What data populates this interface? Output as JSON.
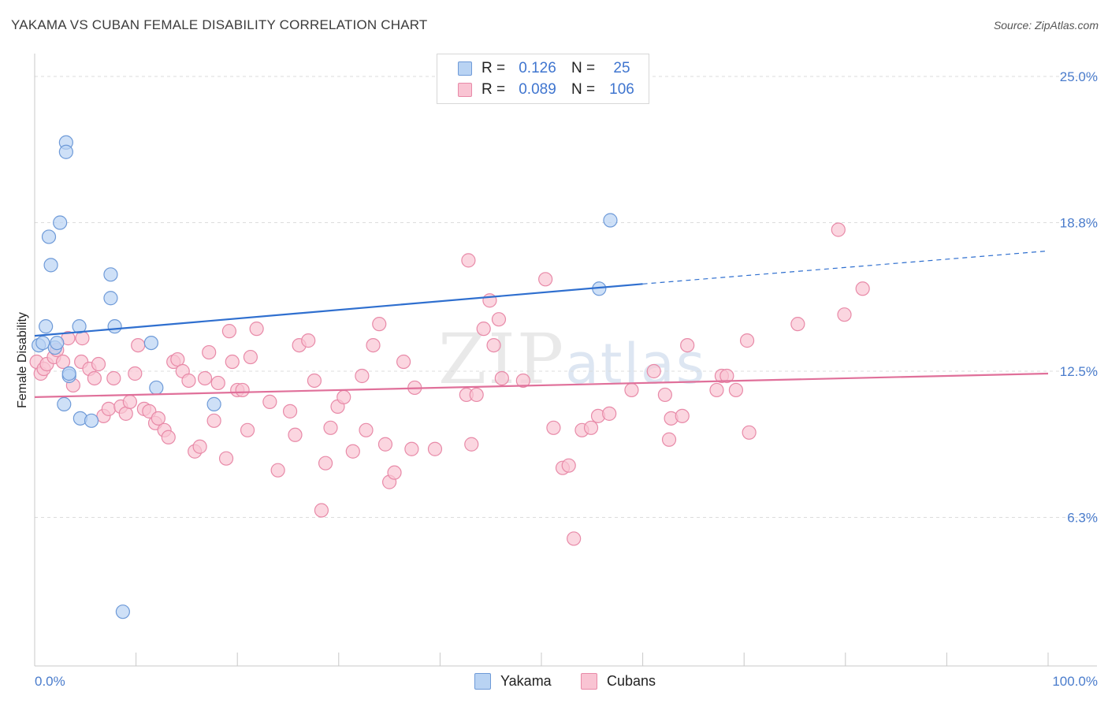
{
  "title": "YAKAMA VS CUBAN FEMALE DISABILITY CORRELATION CHART",
  "source": "Source: ZipAtlas.com",
  "watermark": {
    "zip": "ZIP",
    "atlas": "atlas"
  },
  "legend": {
    "rows": [
      {
        "name": "Yakama",
        "r_label": "R =",
        "r_value": "0.126",
        "n_label": "N =",
        "n_value": "25",
        "color": "#6e9ad8"
      },
      {
        "name": "Cubans",
        "r_label": "R =",
        "r_value": "0.089",
        "n_label": "N =",
        "n_value": "106",
        "color": "#e88aa8"
      }
    ]
  },
  "bottom_legend": {
    "yakama": "Yakama",
    "cubans": "Cubans"
  },
  "chart_data": {
    "type": "scatter",
    "title": "YAKAMA VS CUBAN FEMALE DISABILITY CORRELATION CHART",
    "xlabel": "",
    "ylabel": "Female Disability",
    "xlim": [
      0,
      100
    ],
    "ylim": [
      0,
      25
    ],
    "x_tick_labels": [
      "0.0%",
      "100.0%"
    ],
    "y_ticks": [
      6.3,
      12.5,
      18.8,
      25.0
    ],
    "y_tick_labels": [
      "6.3%",
      "12.5%",
      "18.8%",
      "25.0%"
    ],
    "series": [
      {
        "name": "Yakama",
        "color": "#6e9ad8",
        "fill": "#b9d3f3",
        "trend": {
          "x0": 0,
          "y0": 14.0,
          "x1": 60,
          "y1": 16.2,
          "dash_to_x": 100,
          "dash_to_y": 17.6,
          "color": "#2f6fcf"
        },
        "points": [
          [
            0.4,
            13.6
          ],
          [
            0.8,
            13.7
          ],
          [
            1.1,
            14.4
          ],
          [
            1.4,
            18.2
          ],
          [
            1.6,
            17.0
          ],
          [
            2.0,
            13.5
          ],
          [
            2.2,
            13.7
          ],
          [
            2.5,
            18.8
          ],
          [
            2.9,
            11.1
          ],
          [
            3.1,
            22.2
          ],
          [
            3.1,
            21.8
          ],
          [
            3.4,
            12.3
          ],
          [
            3.4,
            12.4
          ],
          [
            4.4,
            14.4
          ],
          [
            4.5,
            10.5
          ],
          [
            5.6,
            10.4
          ],
          [
            7.5,
            16.6
          ],
          [
            7.5,
            15.6
          ],
          [
            7.9,
            14.4
          ],
          [
            8.7,
            2.3
          ],
          [
            11.5,
            13.7
          ],
          [
            12.0,
            11.8
          ],
          [
            17.7,
            11.1
          ],
          [
            55.7,
            16.0
          ],
          [
            56.8,
            18.9
          ]
        ]
      },
      {
        "name": "Cubans",
        "color": "#e88aa8",
        "fill": "#f9c4d3",
        "trend": {
          "x0": 0,
          "y0": 11.4,
          "x1": 100,
          "y1": 12.4,
          "color": "#e0709a"
        },
        "points": [
          [
            0.2,
            12.9
          ],
          [
            0.6,
            12.4
          ],
          [
            0.9,
            12.6
          ],
          [
            1.2,
            12.8
          ],
          [
            1.9,
            13.1
          ],
          [
            2.2,
            13.4
          ],
          [
            2.8,
            12.9
          ],
          [
            3.3,
            13.9
          ],
          [
            3.8,
            11.9
          ],
          [
            4.6,
            12.9
          ],
          [
            4.7,
            13.9
          ],
          [
            5.4,
            12.6
          ],
          [
            5.9,
            12.2
          ],
          [
            6.3,
            12.8
          ],
          [
            6.8,
            10.6
          ],
          [
            7.3,
            10.9
          ],
          [
            7.8,
            12.2
          ],
          [
            8.5,
            11.0
          ],
          [
            9.0,
            10.7
          ],
          [
            9.4,
            11.2
          ],
          [
            9.9,
            12.4
          ],
          [
            10.2,
            13.6
          ],
          [
            10.8,
            10.9
          ],
          [
            11.3,
            10.8
          ],
          [
            11.9,
            10.3
          ],
          [
            12.2,
            10.5
          ],
          [
            12.8,
            10.0
          ],
          [
            13.2,
            9.7
          ],
          [
            13.7,
            12.9
          ],
          [
            14.1,
            13.0
          ],
          [
            14.6,
            12.5
          ],
          [
            15.2,
            12.1
          ],
          [
            15.8,
            9.1
          ],
          [
            16.3,
            9.3
          ],
          [
            16.8,
            12.2
          ],
          [
            17.2,
            13.3
          ],
          [
            17.7,
            10.4
          ],
          [
            18.1,
            12.0
          ],
          [
            18.9,
            8.8
          ],
          [
            19.2,
            14.2
          ],
          [
            19.5,
            12.9
          ],
          [
            20.0,
            11.7
          ],
          [
            20.5,
            11.7
          ],
          [
            21.0,
            10.0
          ],
          [
            21.3,
            13.1
          ],
          [
            21.9,
            14.3
          ],
          [
            23.2,
            11.2
          ],
          [
            24.0,
            8.3
          ],
          [
            25.2,
            10.8
          ],
          [
            25.7,
            9.8
          ],
          [
            26.1,
            13.6
          ],
          [
            27.0,
            13.8
          ],
          [
            27.6,
            12.1
          ],
          [
            28.3,
            6.6
          ],
          [
            28.7,
            8.6
          ],
          [
            29.2,
            10.1
          ],
          [
            29.9,
            11.0
          ],
          [
            30.5,
            11.4
          ],
          [
            31.4,
            9.1
          ],
          [
            32.3,
            12.3
          ],
          [
            32.7,
            10.0
          ],
          [
            33.4,
            13.6
          ],
          [
            34.0,
            14.5
          ],
          [
            34.6,
            9.4
          ],
          [
            35.0,
            7.8
          ],
          [
            35.5,
            8.2
          ],
          [
            36.4,
            12.9
          ],
          [
            37.2,
            9.2
          ],
          [
            37.5,
            11.8
          ],
          [
            39.5,
            9.2
          ],
          [
            42.6,
            11.5
          ],
          [
            42.8,
            17.2
          ],
          [
            43.1,
            9.4
          ],
          [
            43.6,
            11.5
          ],
          [
            44.3,
            14.3
          ],
          [
            44.9,
            15.5
          ],
          [
            45.3,
            13.6
          ],
          [
            45.8,
            14.7
          ],
          [
            46.1,
            12.2
          ],
          [
            48.2,
            12.1
          ],
          [
            50.4,
            16.4
          ],
          [
            51.2,
            10.1
          ],
          [
            52.1,
            8.4
          ],
          [
            52.7,
            8.5
          ],
          [
            53.2,
            5.4
          ],
          [
            54.0,
            10.0
          ],
          [
            54.9,
            10.1
          ],
          [
            55.6,
            10.6
          ],
          [
            56.7,
            10.7
          ],
          [
            58.9,
            11.7
          ],
          [
            61.1,
            12.5
          ],
          [
            62.2,
            11.5
          ],
          [
            62.6,
            9.6
          ],
          [
            62.8,
            10.5
          ],
          [
            63.9,
            10.6
          ],
          [
            64.4,
            13.6
          ],
          [
            67.3,
            11.7
          ],
          [
            67.8,
            12.3
          ],
          [
            68.3,
            12.3
          ],
          [
            69.2,
            11.7
          ],
          [
            70.3,
            13.8
          ],
          [
            70.5,
            9.9
          ],
          [
            75.3,
            14.5
          ],
          [
            79.3,
            18.5
          ],
          [
            79.9,
            14.9
          ],
          [
            81.7,
            16.0
          ]
        ]
      }
    ]
  }
}
